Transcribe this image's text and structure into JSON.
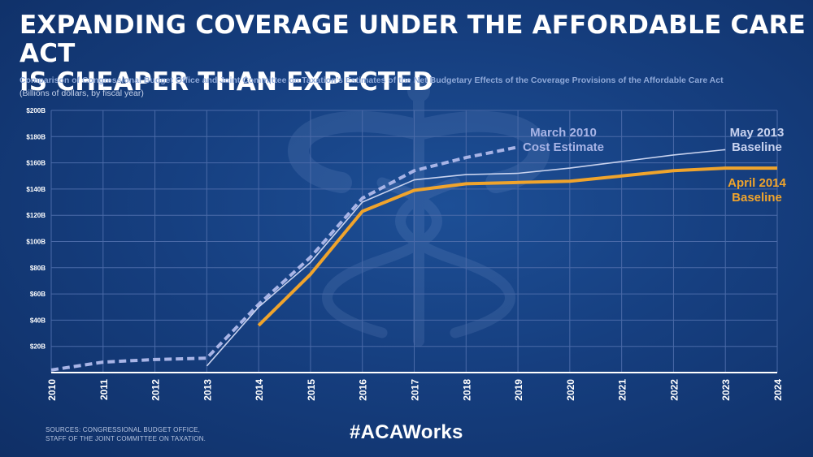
{
  "title_line1": "EXPANDING COVERAGE UNDER THE AFFORDABLE CARE ACT",
  "title_line2": "IS CHEAPER THAN EXPECTED",
  "subtitle": "Comparison of Congressional Budget Office and Joint Committee on Taxation’s Estimates of the Net Budgetary Effects of the Coverage Provisions of the Affordable Care Act",
  "units": "(Billions of dollars, by fiscal year)",
  "sources_line1": "SOURCES: CONGRESSIONAL BUDGET OFFICE,",
  "sources_line2": "STAFF OF THE JOINT COMMITTEE ON TAXATION.",
  "hashtag": "#ACAWorks",
  "colors": {
    "background": "#163f80",
    "march_2010": "#a8b4e6",
    "may_2013": "#c9d3ef",
    "april_2014": "#f0a42c",
    "gridline": "#4a6aa8",
    "tick_text": "#ffffff"
  },
  "background_icon": "caduceus-icon",
  "chart_data": {
    "type": "line",
    "x": [
      2010,
      2011,
      2012,
      2013,
      2014,
      2015,
      2016,
      2017,
      2018,
      2019,
      2020,
      2021,
      2022,
      2023,
      2024
    ],
    "xlim": [
      2010,
      2024
    ],
    "ylim": [
      0,
      200
    ],
    "y_ticks": [
      "$20B",
      "$40B",
      "$60B",
      "$80B",
      "$100B",
      "$120B",
      "$140B",
      "$160B",
      "$180B",
      "$200B"
    ],
    "y_tick_values": [
      20,
      40,
      60,
      80,
      100,
      120,
      140,
      160,
      180,
      200
    ],
    "grid": true,
    "series": [
      {
        "name": "March 2010 Cost Estimate",
        "label_lines": [
          "March 2010",
          "Cost Estimate"
        ],
        "style": "dashed",
        "color": "#a8b4e6",
        "x": [
          2010,
          2011,
          2012,
          2013,
          2014,
          2015,
          2016,
          2017,
          2018,
          2019
        ],
        "values": [
          2,
          8,
          10,
          11,
          52,
          88,
          133,
          154,
          164,
          172
        ]
      },
      {
        "name": "May 2013 Baseline",
        "label_lines": [
          "May 2013",
          "Baseline"
        ],
        "style": "solid-thin",
        "color": "#c9d3ef",
        "x": [
          2013,
          2014,
          2015,
          2016,
          2017,
          2018,
          2019,
          2020,
          2021,
          2022,
          2023
        ],
        "values": [
          5,
          50,
          84,
          130,
          147,
          151,
          152,
          156,
          161,
          166,
          170
        ]
      },
      {
        "name": "April 2014 Baseline",
        "label_lines": [
          "April 2014",
          "Baseline"
        ],
        "style": "solid-thick",
        "color": "#f0a42c",
        "x": [
          2014,
          2015,
          2016,
          2017,
          2018,
          2019,
          2020,
          2021,
          2022,
          2023,
          2024
        ],
        "values": [
          36,
          75,
          123,
          139,
          144,
          145,
          146,
          150,
          154,
          156,
          156
        ]
      }
    ]
  }
}
